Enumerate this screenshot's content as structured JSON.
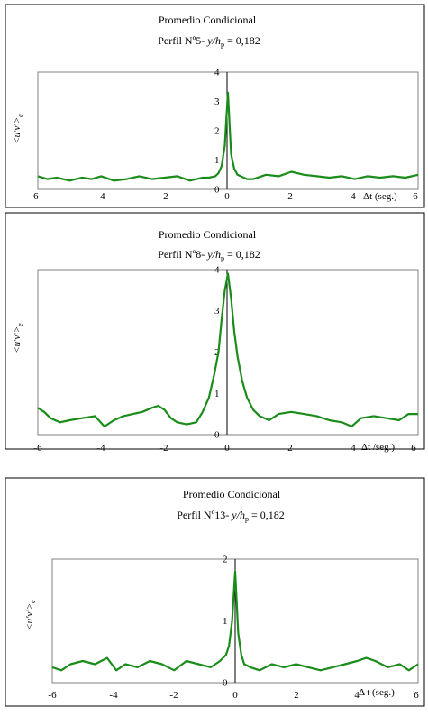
{
  "chart_data": [
    {
      "type": "line",
      "title": "Promedio Condicional",
      "subtitle": {
        "prefix": "Perfil Nº5- ",
        "var": "y/h",
        "sub": "p",
        "suffix": " = 0,182"
      },
      "ylabel": {
        "main": "<u'v'>",
        "sub": "e"
      },
      "xlabel": "Δt (seg.)",
      "xlim": [
        -6,
        6
      ],
      "ylim": [
        0,
        4
      ],
      "xticks": [
        "-6",
        "-4",
        "-2",
        "0",
        "2",
        "4",
        "6"
      ],
      "yticks": [
        "0",
        "1",
        "2",
        "3",
        "4"
      ],
      "grid": false,
      "series": [
        {
          "color": "#1a8c1a",
          "x": [
            -6,
            -5.7,
            -5.4,
            -5.0,
            -4.6,
            -4.3,
            -4.0,
            -3.6,
            -3.2,
            -2.8,
            -2.4,
            -2.0,
            -1.6,
            -1.2,
            -0.8,
            -0.6,
            -0.4,
            -0.3,
            -0.2,
            -0.1,
            -0.05,
            0,
            0.05,
            0.1,
            0.2,
            0.3,
            0.4,
            0.6,
            0.8,
            1.2,
            1.6,
            2.0,
            2.4,
            2.8,
            3.2,
            3.6,
            4.0,
            4.4,
            4.8,
            5.2,
            5.6,
            6.0
          ],
          "y": [
            0.45,
            0.35,
            0.4,
            0.3,
            0.4,
            0.35,
            0.45,
            0.3,
            0.35,
            0.45,
            0.35,
            0.4,
            0.45,
            0.3,
            0.4,
            0.4,
            0.45,
            0.55,
            0.8,
            1.5,
            2.4,
            3.3,
            2.2,
            1.2,
            0.7,
            0.5,
            0.45,
            0.35,
            0.35,
            0.5,
            0.45,
            0.6,
            0.5,
            0.45,
            0.4,
            0.45,
            0.35,
            0.45,
            0.4,
            0.45,
            0.4,
            0.5
          ]
        }
      ]
    },
    {
      "type": "line",
      "title": "Promedio Condicional",
      "subtitle": {
        "prefix": "Perfil Nº8- ",
        "var": "y/h",
        "sub": "p",
        "suffix": " = 0,182"
      },
      "ylabel": {
        "main": "<u'v'>",
        "sub": "e"
      },
      "xlabel": "Δt /seg.)",
      "xlim": [
        -6,
        6
      ],
      "ylim": [
        0,
        4
      ],
      "xticks": [
        "-6",
        "-4",
        "-2",
        "0",
        "2",
        "4",
        "6"
      ],
      "yticks": [
        "0",
        "1",
        "2",
        "3",
        "4"
      ],
      "grid": false,
      "series": [
        {
          "color": "#1a8c1a",
          "x": [
            -6,
            -5.8,
            -5.6,
            -5.3,
            -5.0,
            -4.6,
            -4.2,
            -3.9,
            -3.6,
            -3.3,
            -3.0,
            -2.7,
            -2.4,
            -2.2,
            -2.0,
            -1.8,
            -1.6,
            -1.3,
            -1.0,
            -0.8,
            -0.6,
            -0.45,
            -0.3,
            -0.2,
            -0.1,
            0,
            0.1,
            0.2,
            0.3,
            0.45,
            0.6,
            0.8,
            1.0,
            1.3,
            1.6,
            2.0,
            2.4,
            2.8,
            3.2,
            3.6,
            3.9,
            4.2,
            4.6,
            5.0,
            5.4,
            5.7,
            6.0
          ],
          "y": [
            0.65,
            0.55,
            0.4,
            0.3,
            0.35,
            0.4,
            0.45,
            0.2,
            0.35,
            0.45,
            0.5,
            0.55,
            0.65,
            0.7,
            0.6,
            0.4,
            0.3,
            0.25,
            0.3,
            0.55,
            0.9,
            1.4,
            2.0,
            2.8,
            3.5,
            3.9,
            3.3,
            2.5,
            1.9,
            1.3,
            0.9,
            0.6,
            0.45,
            0.35,
            0.5,
            0.55,
            0.5,
            0.45,
            0.35,
            0.3,
            0.2,
            0.4,
            0.45,
            0.4,
            0.35,
            0.5,
            0.5
          ]
        }
      ]
    },
    {
      "type": "line",
      "title": "Promedio Condicional",
      "subtitle": {
        "prefix": "Perfil Nº13- ",
        "var": "y/h",
        "sub": "p",
        "suffix": " = 0,182"
      },
      "ylabel": {
        "main": "<u'v'>",
        "sub": "e"
      },
      "xlabel": "Δ t (seg.)",
      "xlim": [
        -6,
        6
      ],
      "ylim": [
        0,
        2
      ],
      "xticks": [
        "-6",
        "-4",
        "-2",
        "0",
        "2",
        "4",
        "6"
      ],
      "yticks": [
        "0",
        "1",
        "2"
      ],
      "grid": false,
      "series": [
        {
          "color": "#1a8c1a",
          "x": [
            -6,
            -5.7,
            -5.4,
            -5.0,
            -4.6,
            -4.2,
            -3.9,
            -3.6,
            -3.2,
            -2.8,
            -2.4,
            -2.0,
            -1.6,
            -1.2,
            -0.8,
            -0.5,
            -0.3,
            -0.2,
            -0.1,
            -0.05,
            0,
            0.05,
            0.1,
            0.2,
            0.3,
            0.5,
            0.8,
            1.2,
            1.6,
            2.0,
            2.4,
            2.8,
            3.2,
            3.6,
            4.0,
            4.3,
            4.6,
            5.0,
            5.4,
            5.7,
            6.0
          ],
          "y": [
            0.25,
            0.2,
            0.3,
            0.35,
            0.3,
            0.4,
            0.2,
            0.3,
            0.25,
            0.35,
            0.3,
            0.2,
            0.35,
            0.3,
            0.25,
            0.35,
            0.45,
            0.6,
            1.0,
            1.4,
            1.8,
            1.3,
            0.8,
            0.45,
            0.3,
            0.25,
            0.2,
            0.3,
            0.25,
            0.3,
            0.25,
            0.2,
            0.25,
            0.3,
            0.35,
            0.4,
            0.35,
            0.25,
            0.3,
            0.2,
            0.3
          ]
        }
      ]
    }
  ]
}
